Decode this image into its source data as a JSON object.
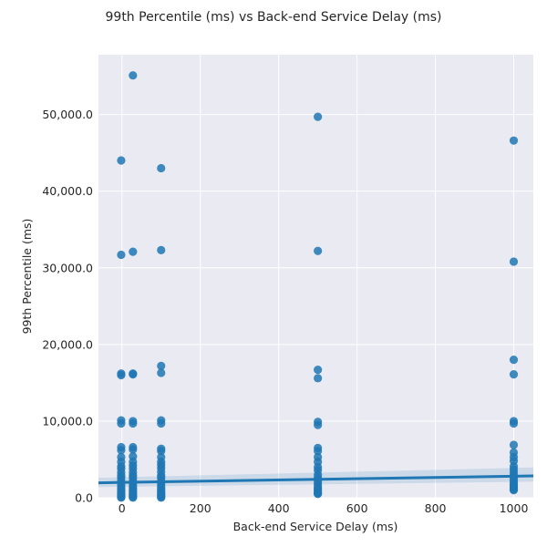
{
  "chart_data": {
    "type": "scatter",
    "title": "99th Percentile (ms) vs Back-end Service Delay (ms)",
    "xlabel": "Back-end Service Delay (ms)",
    "ylabel": "99th Percentile (ms)",
    "xlim": [
      -60,
      1050
    ],
    "ylim": [
      0,
      57800
    ],
    "xticks": [
      0,
      200,
      400,
      600,
      800,
      1000
    ],
    "xtick_labels": [
      "0",
      "200",
      "400",
      "600",
      "800",
      "1000"
    ],
    "yticks": [
      0,
      10000,
      20000,
      30000,
      40000,
      50000
    ],
    "ytick_labels": [
      "0.0",
      "10,000.0",
      "20,000.0",
      "30,000.0",
      "40,000.0",
      "50,000.0"
    ],
    "grid": true,
    "colors": {
      "background": "#eaeaf2",
      "grid": "#ffffff",
      "points": "#1f77b4",
      "regression_line": "#1f77b4",
      "confidence_band": "#1f77b4"
    },
    "regression": {
      "x": [
        -60,
        1050
      ],
      "y": [
        1950,
        2850
      ],
      "ci_lower": [
        1400,
        2100
      ],
      "ci_upper": [
        2600,
        3950
      ]
    },
    "points": [
      {
        "x": -2,
        "y": 44000
      },
      {
        "x": -2,
        "y": 31700
      },
      {
        "x": -2,
        "y": 16200
      },
      {
        "x": -2,
        "y": 16000
      },
      {
        "x": -2,
        "y": 10100
      },
      {
        "x": -2,
        "y": 9700
      },
      {
        "x": -2,
        "y": 6600
      },
      {
        "x": -2,
        "y": 6200
      },
      {
        "x": -2,
        "y": 5300
      },
      {
        "x": -2,
        "y": 4700
      },
      {
        "x": -2,
        "y": 4100
      },
      {
        "x": -2,
        "y": 3800
      },
      {
        "x": -2,
        "y": 3300
      },
      {
        "x": -2,
        "y": 2900
      },
      {
        "x": -2,
        "y": 2600
      },
      {
        "x": -2,
        "y": 2200
      },
      {
        "x": -2,
        "y": 1900
      },
      {
        "x": -2,
        "y": 1600
      },
      {
        "x": -2,
        "y": 1300
      },
      {
        "x": -2,
        "y": 1000
      },
      {
        "x": -2,
        "y": 800
      },
      {
        "x": -2,
        "y": 600
      },
      {
        "x": -2,
        "y": 400
      },
      {
        "x": -2,
        "y": 250
      },
      {
        "x": -2,
        "y": 100
      },
      {
        "x": -2,
        "y": 20
      },
      {
        "x": 28,
        "y": 55100
      },
      {
        "x": 28,
        "y": 32100
      },
      {
        "x": 28,
        "y": 16200
      },
      {
        "x": 28,
        "y": 16100
      },
      {
        "x": 28,
        "y": 10000
      },
      {
        "x": 28,
        "y": 9700
      },
      {
        "x": 28,
        "y": 6600
      },
      {
        "x": 28,
        "y": 6300
      },
      {
        "x": 28,
        "y": 5400
      },
      {
        "x": 28,
        "y": 4700
      },
      {
        "x": 28,
        "y": 4200
      },
      {
        "x": 28,
        "y": 3800
      },
      {
        "x": 28,
        "y": 3300
      },
      {
        "x": 28,
        "y": 2900
      },
      {
        "x": 28,
        "y": 2600
      },
      {
        "x": 28,
        "y": 2200
      },
      {
        "x": 28,
        "y": 1900
      },
      {
        "x": 28,
        "y": 1600
      },
      {
        "x": 28,
        "y": 1300
      },
      {
        "x": 28,
        "y": 1000
      },
      {
        "x": 28,
        "y": 800
      },
      {
        "x": 28,
        "y": 600
      },
      {
        "x": 28,
        "y": 400
      },
      {
        "x": 28,
        "y": 250
      },
      {
        "x": 28,
        "y": 100
      },
      {
        "x": 28,
        "y": 20
      },
      {
        "x": 100,
        "y": 43000
      },
      {
        "x": 100,
        "y": 32300
      },
      {
        "x": 100,
        "y": 17200
      },
      {
        "x": 100,
        "y": 16300
      },
      {
        "x": 100,
        "y": 10100
      },
      {
        "x": 100,
        "y": 9700
      },
      {
        "x": 100,
        "y": 6400
      },
      {
        "x": 100,
        "y": 6100
      },
      {
        "x": 100,
        "y": 5300
      },
      {
        "x": 100,
        "y": 4700
      },
      {
        "x": 100,
        "y": 4300
      },
      {
        "x": 100,
        "y": 3900
      },
      {
        "x": 100,
        "y": 3400
      },
      {
        "x": 100,
        "y": 2900
      },
      {
        "x": 100,
        "y": 2600
      },
      {
        "x": 100,
        "y": 2200
      },
      {
        "x": 100,
        "y": 1900
      },
      {
        "x": 100,
        "y": 1600
      },
      {
        "x": 100,
        "y": 1300
      },
      {
        "x": 100,
        "y": 1000
      },
      {
        "x": 100,
        "y": 800
      },
      {
        "x": 100,
        "y": 600
      },
      {
        "x": 100,
        "y": 400
      },
      {
        "x": 100,
        "y": 250
      },
      {
        "x": 100,
        "y": 100
      },
      {
        "x": 100,
        "y": 20
      },
      {
        "x": 500,
        "y": 49700
      },
      {
        "x": 500,
        "y": 32200
      },
      {
        "x": 500,
        "y": 16700
      },
      {
        "x": 500,
        "y": 15600
      },
      {
        "x": 500,
        "y": 9900
      },
      {
        "x": 500,
        "y": 9500
      },
      {
        "x": 500,
        "y": 6500
      },
      {
        "x": 500,
        "y": 6100
      },
      {
        "x": 500,
        "y": 5300
      },
      {
        "x": 500,
        "y": 4700
      },
      {
        "x": 500,
        "y": 4000
      },
      {
        "x": 500,
        "y": 3600
      },
      {
        "x": 500,
        "y": 3000
      },
      {
        "x": 500,
        "y": 2600
      },
      {
        "x": 500,
        "y": 2200
      },
      {
        "x": 500,
        "y": 1900
      },
      {
        "x": 500,
        "y": 1600
      },
      {
        "x": 500,
        "y": 1300
      },
      {
        "x": 500,
        "y": 1100
      },
      {
        "x": 500,
        "y": 900
      },
      {
        "x": 500,
        "y": 700
      },
      {
        "x": 500,
        "y": 550
      },
      {
        "x": 500,
        "y": 500
      },
      {
        "x": 1000,
        "y": 46600
      },
      {
        "x": 1000,
        "y": 30800
      },
      {
        "x": 1000,
        "y": 18000
      },
      {
        "x": 1000,
        "y": 16100
      },
      {
        "x": 1000,
        "y": 10000
      },
      {
        "x": 1000,
        "y": 9700
      },
      {
        "x": 1000,
        "y": 6900
      },
      {
        "x": 1000,
        "y": 5900
      },
      {
        "x": 1000,
        "y": 5300
      },
      {
        "x": 1000,
        "y": 4800
      },
      {
        "x": 1000,
        "y": 4100
      },
      {
        "x": 1000,
        "y": 3700
      },
      {
        "x": 1000,
        "y": 3300
      },
      {
        "x": 1000,
        "y": 2900
      },
      {
        "x": 1000,
        "y": 2600
      },
      {
        "x": 1000,
        "y": 2300
      },
      {
        "x": 1000,
        "y": 2000
      },
      {
        "x": 1000,
        "y": 1800
      },
      {
        "x": 1000,
        "y": 1600
      },
      {
        "x": 1000,
        "y": 1400
      },
      {
        "x": 1000,
        "y": 1200
      },
      {
        "x": 1000,
        "y": 1100
      },
      {
        "x": 1000,
        "y": 1000
      }
    ]
  }
}
